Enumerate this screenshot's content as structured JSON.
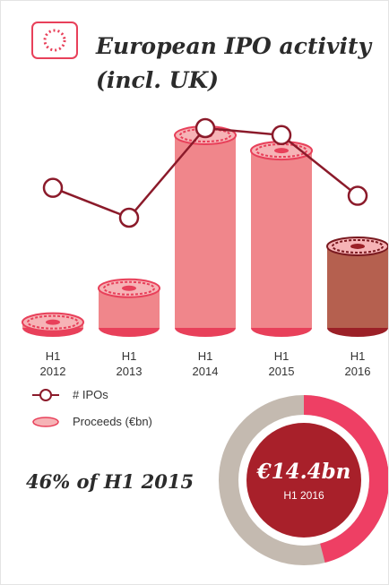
{
  "title": "European IPO activity (incl. UK)",
  "chart_data": {
    "type": "bar_line",
    "categories": [
      "H1 2012",
      "H1 2013",
      "H1 2014",
      "H1 2015",
      "H1 2016"
    ],
    "series": [
      {
        "name": "Proceeds (€bn)",
        "kind": "bar",
        "color": "#f0868b",
        "values": [
          1,
          7,
          34,
          31.3,
          14.4
        ]
      },
      {
        "name": "# IPOs",
        "kind": "line",
        "color": "#8b1a2a",
        "values": [
          130,
          100,
          190,
          183,
          122
        ]
      }
    ]
  },
  "donut": {
    "percent": 46,
    "label": "46% of H1 2015",
    "center_label": "€14.4bn",
    "center_sublabel": "H1 2016",
    "color": "#ee3f64",
    "rest_color": "#c4bab0",
    "center_color": "#a8202a"
  }
}
